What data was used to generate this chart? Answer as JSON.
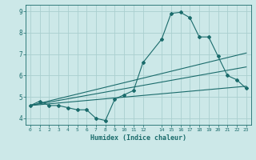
{
  "xlabel": "Humidex (Indice chaleur)",
  "ylabel": "",
  "background_color": "#cce8e8",
  "grid_color": "#aacfcf",
  "line_color": "#1a6b6b",
  "xlim": [
    -0.5,
    23.5
  ],
  "ylim": [
    3.7,
    9.3
  ],
  "xticks": [
    0,
    1,
    2,
    3,
    4,
    5,
    6,
    7,
    8,
    9,
    10,
    11,
    12,
    14,
    15,
    16,
    17,
    18,
    19,
    20,
    21,
    22,
    23
  ],
  "yticks": [
    4,
    5,
    6,
    7,
    8,
    9
  ],
  "line1_x": [
    0,
    1,
    2,
    3,
    4,
    5,
    6,
    7,
    8,
    9,
    10,
    11,
    12,
    14,
    15,
    16,
    17,
    18,
    19,
    20,
    21,
    22,
    23
  ],
  "line1_y": [
    4.6,
    4.8,
    4.6,
    4.6,
    4.5,
    4.4,
    4.4,
    4.0,
    3.9,
    4.9,
    5.1,
    5.3,
    6.6,
    7.7,
    8.9,
    8.95,
    8.7,
    7.8,
    7.8,
    6.9,
    6.0,
    5.8,
    5.4
  ],
  "line2_x": [
    0,
    23
  ],
  "line2_y": [
    4.6,
    5.5
  ],
  "line3_x": [
    0,
    23
  ],
  "line3_y": [
    4.6,
    6.4
  ],
  "line4_x": [
    0,
    23
  ],
  "line4_y": [
    4.6,
    7.05
  ]
}
